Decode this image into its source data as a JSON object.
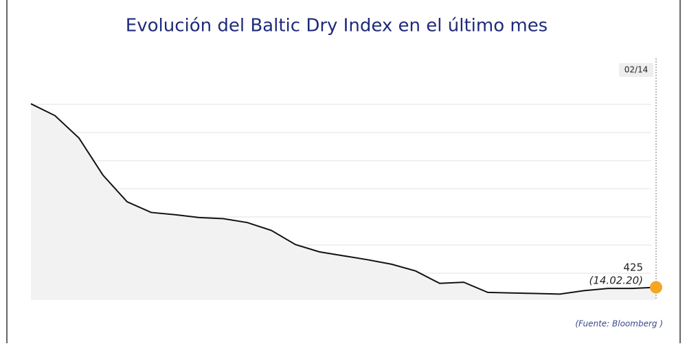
{
  "chart_data": {
    "type": "area",
    "title": "Evolución del Baltic Dry Index en el último mes",
    "categories": [
      null,
      null,
      null,
      null,
      null,
      null,
      null,
      null,
      null,
      null,
      null,
      null,
      null,
      null,
      null,
      null,
      null,
      null,
      null,
      null,
      null,
      null,
      null,
      null,
      null,
      null,
      "02/14"
    ],
    "values": [
      751,
      730,
      690,
      624,
      577,
      558,
      554,
      549,
      547,
      540,
      526,
      501,
      488,
      481,
      474,
      466,
      454,
      432,
      434,
      416,
      415,
      414,
      413,
      419,
      423,
      423,
      425
    ],
    "color": "#111111",
    "fill": "#f2f2f2",
    "marker_color": "#f5a623",
    "last_value_label": "425",
    "last_date_label": "(14.02.20)",
    "ylim": [
      400,
      800
    ],
    "yticks": [
      450,
      500,
      550,
      600,
      650,
      700,
      750
    ],
    "grid": true,
    "source": "(Fuente: Bloomberg )"
  }
}
